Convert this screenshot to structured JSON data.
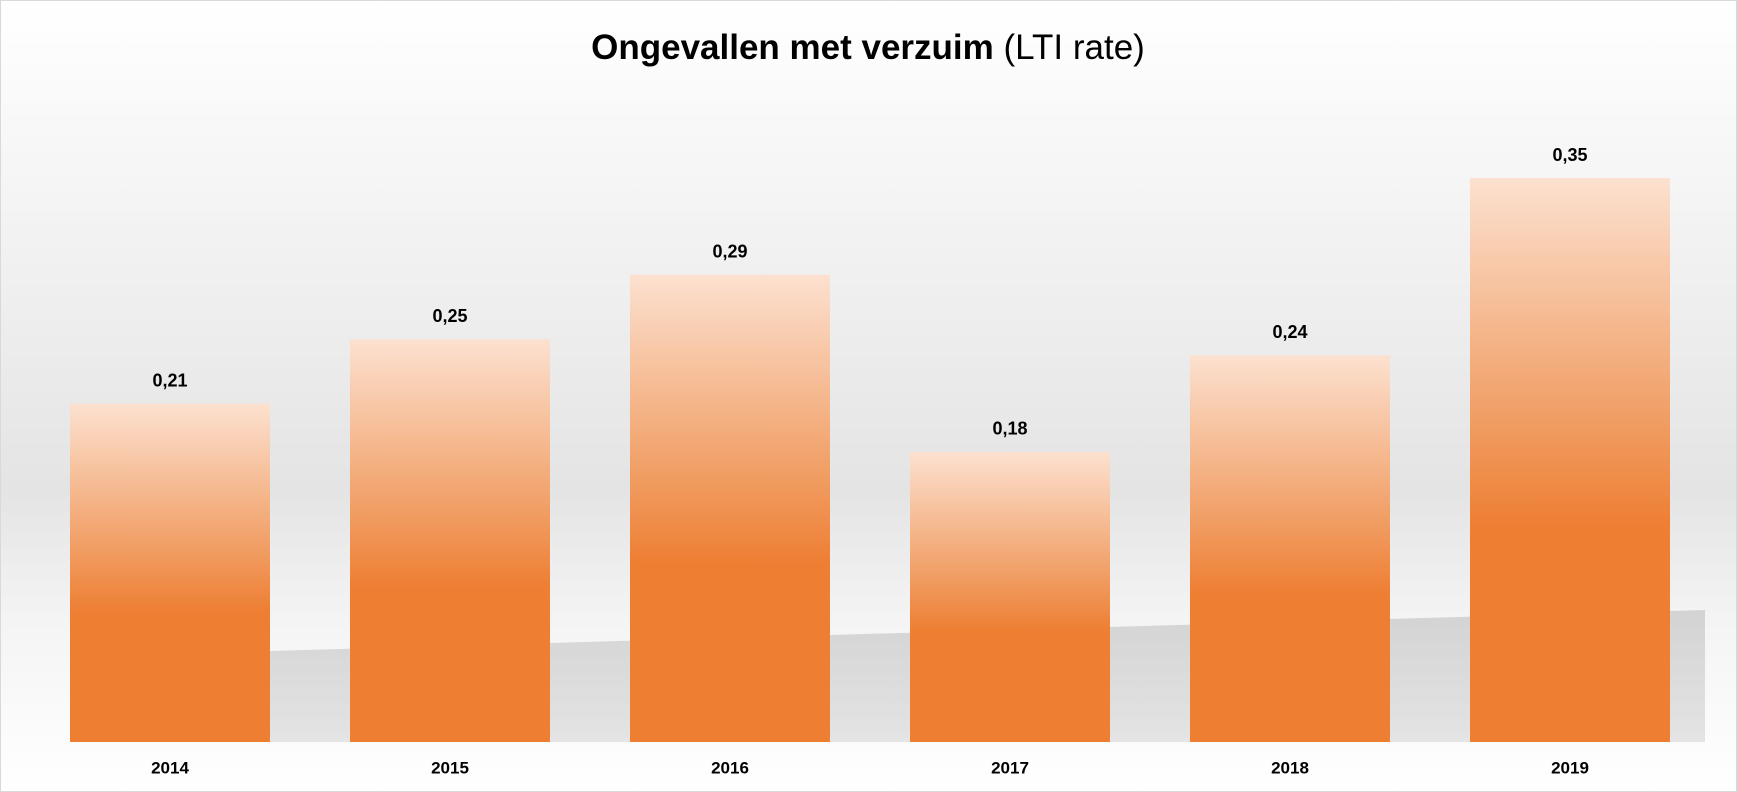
{
  "chart_data": {
    "type": "bar",
    "title": "Ongevallen met verzuim",
    "title_suffix": "(LTI rate)",
    "categories": [
      "2014",
      "2015",
      "2016",
      "2017",
      "2018",
      "2019"
    ],
    "values": [
      0.21,
      0.25,
      0.29,
      0.18,
      0.24,
      0.35
    ],
    "value_labels": [
      "0,21",
      "0,25",
      "0,29",
      "0,18",
      "0,24",
      "0,35"
    ],
    "color": "#ee7e32"
  }
}
